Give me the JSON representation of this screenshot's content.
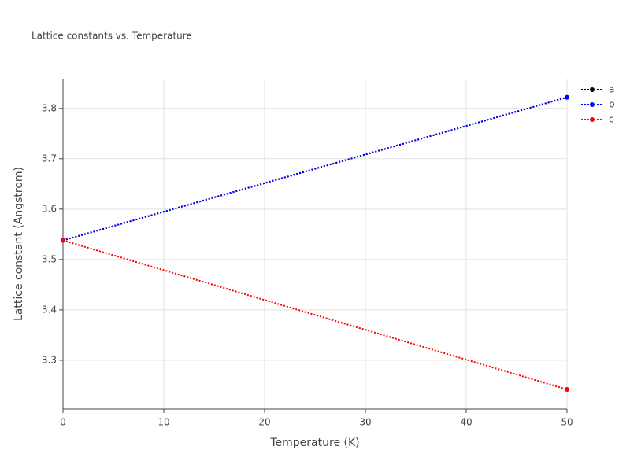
{
  "chart_data": {
    "type": "line",
    "title": "Lattice constants vs. Temperature",
    "x_label": "Temperature (K)",
    "y_label": "Lattice constant (Angstrom)",
    "x": [
      0,
      50
    ],
    "series": [
      {
        "name": "a",
        "color": "#000000",
        "values": [
          3.538,
          3.822
        ]
      },
      {
        "name": "b",
        "color": "#0000ff",
        "values": [
          3.538,
          3.822
        ]
      },
      {
        "name": "c",
        "color": "#ff0000",
        "values": [
          3.538,
          3.242
        ]
      }
    ],
    "xlim": [
      0,
      50
    ],
    "xticks": [
      0,
      10,
      20,
      30,
      40,
      50
    ],
    "ylim": [
      3.203,
      3.859
    ],
    "yticks": [
      3.3,
      3.4,
      3.5,
      3.6,
      3.7,
      3.8
    ],
    "grid": true,
    "legend": "right"
  }
}
